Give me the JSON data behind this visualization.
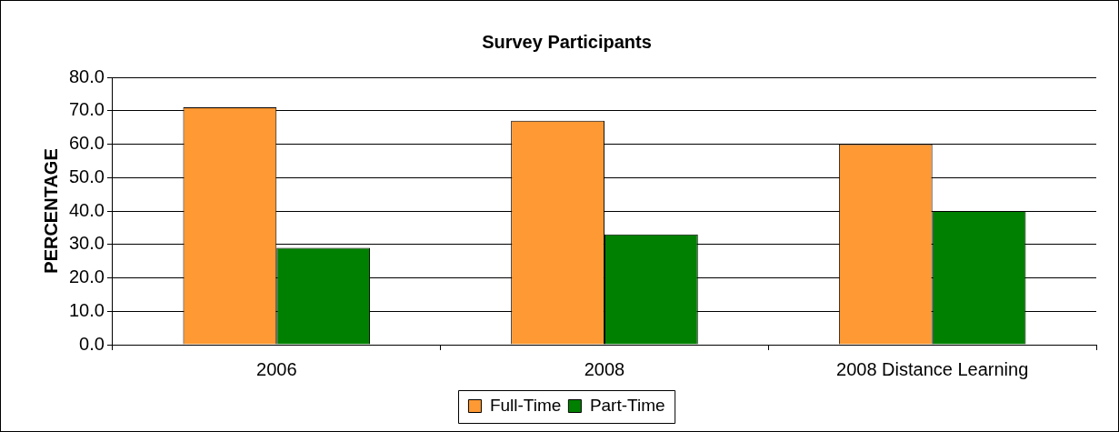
{
  "chart_data": {
    "type": "bar",
    "title": "Survey Participants",
    "ylabel": "PERCENTAGE",
    "categories": [
      "2006",
      "2008",
      "2008 Distance Learning"
    ],
    "series": [
      {
        "name": "Full-Time",
        "color": "#ff9933",
        "values": [
          71,
          67,
          60
        ]
      },
      {
        "name": "Part-Time",
        "color": "#008000",
        "values": [
          29,
          33,
          40
        ]
      }
    ],
    "ylim": [
      0,
      80
    ],
    "yticks": [
      {
        "value": 0,
        "label": "0.0"
      },
      {
        "value": 10,
        "label": "10.0"
      },
      {
        "value": 20,
        "label": "20.0"
      },
      {
        "value": 30,
        "label": "30.0"
      },
      {
        "value": 40,
        "label": "40.0"
      },
      {
        "value": 50,
        "label": "50.0"
      },
      {
        "value": 60,
        "label": "60.0"
      },
      {
        "value": 70,
        "label": "70.0"
      },
      {
        "value": 80,
        "label": "80.0"
      }
    ],
    "grid": "y",
    "legend": "bottom"
  }
}
